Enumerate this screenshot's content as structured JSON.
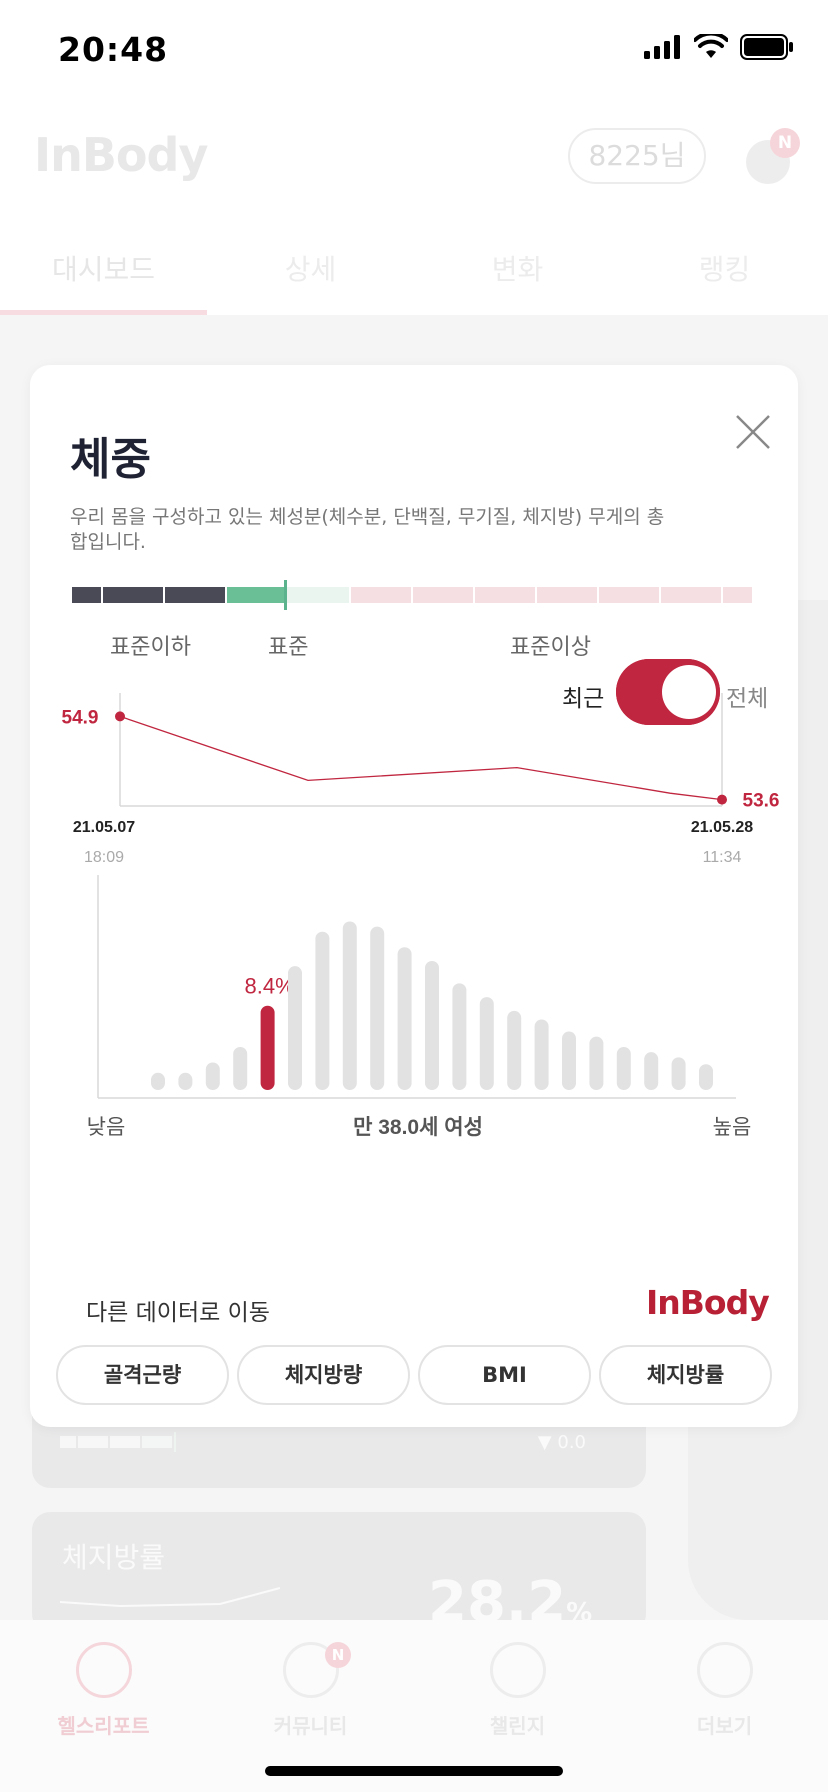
{
  "status_bar": {
    "time": "20:48"
  },
  "background": {
    "logo": "InBody",
    "user": "8225님",
    "bell_badge": "N",
    "tabs": [
      "대시보드",
      "상세",
      "변화",
      "랭킹"
    ],
    "card1_delta": "▼ 0.0",
    "card2_title": "체지방률",
    "card2_value": "28.2",
    "card2_unit": "%",
    "bottom_nav": [
      {
        "label": "헬스리포트",
        "icon": "health-report-icon"
      },
      {
        "label": "커뮤니티",
        "icon": "community-icon",
        "badge": "N"
      },
      {
        "label": "챌린지",
        "icon": "challenge-flame-icon"
      },
      {
        "label": "더보기",
        "icon": "more-dots-icon"
      }
    ]
  },
  "modal": {
    "title": "체중",
    "description": "우리 몸을 구성하고 있는 체성분(체수분, 단백질, 무기질, 체지방) 무게의 총 합입니다.",
    "range_labels": {
      "below": "표준이하",
      "standard": "표준",
      "above": "표준이상"
    },
    "toggle": {
      "left": "최근",
      "right": "전체",
      "state": "on"
    },
    "goto_label": "다른 데이터로 이동",
    "logo": "InBody",
    "chips": [
      "골격근량",
      "체지방량",
      "BMI",
      "체지방률"
    ],
    "colors": {
      "accent": "#c0263f",
      "standard": "#6abf97",
      "dark": "#4a4a56"
    }
  },
  "chart_data": [
    {
      "type": "line",
      "x": [
        "21.05.07 18:09",
        "",
        "",
        "",
        "21.05.28 11:34"
      ],
      "values": [
        54.9,
        53.9,
        54.1,
        53.7,
        53.6
      ],
      "start_label": "54.9",
      "end_label": "53.6",
      "start_date": "21.05.07",
      "start_time": "18:09",
      "end_date": "21.05.28",
      "end_time": "11:34"
    },
    {
      "type": "bar",
      "values": [
        1,
        1,
        1.6,
        2.5,
        4.9,
        7.2,
        9.2,
        9.8,
        9.5,
        8.3,
        7.5,
        6.2,
        5.4,
        4.6,
        4.1,
        3.4,
        3.1,
        2.5,
        2.2,
        1.9,
        1.5
      ],
      "highlight_index": 4,
      "highlight_label": "8.4%",
      "xlabel_left": "낮음",
      "xlabel_center": "만 38.0세 여성",
      "xlabel_right": "높음"
    }
  ]
}
